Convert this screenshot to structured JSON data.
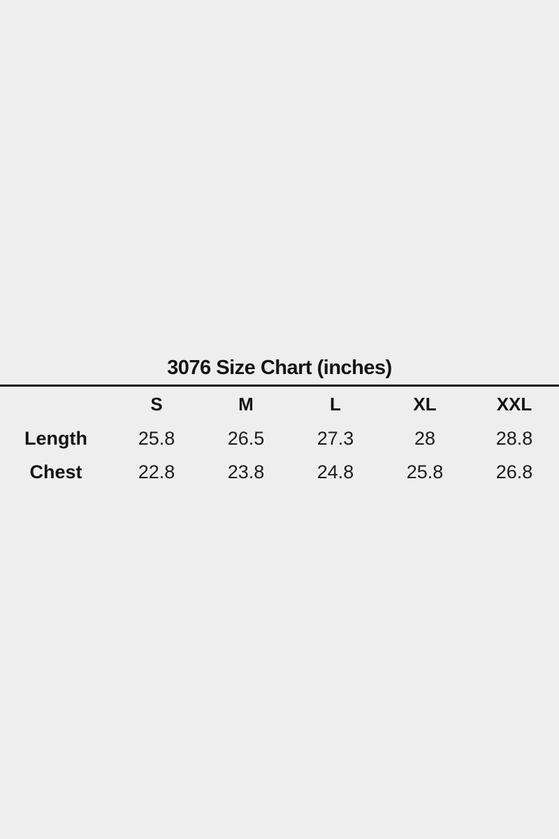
{
  "page": {
    "background_color": "#eeeeee",
    "text_color": "#141414",
    "rule_color": "#141414"
  },
  "chart_data": {
    "type": "table",
    "title": "3076 Size Chart (inches)",
    "columns": [
      "",
      "S",
      "M",
      "L",
      "XL",
      "XXL"
    ],
    "rows": [
      {
        "label": "Length",
        "values": [
          "25.8",
          "26.5",
          "27.3",
          "28",
          "28.8"
        ]
      },
      {
        "label": "Chest",
        "values": [
          "22.8",
          "23.8",
          "24.8",
          "25.8",
          "26.8"
        ]
      }
    ]
  }
}
